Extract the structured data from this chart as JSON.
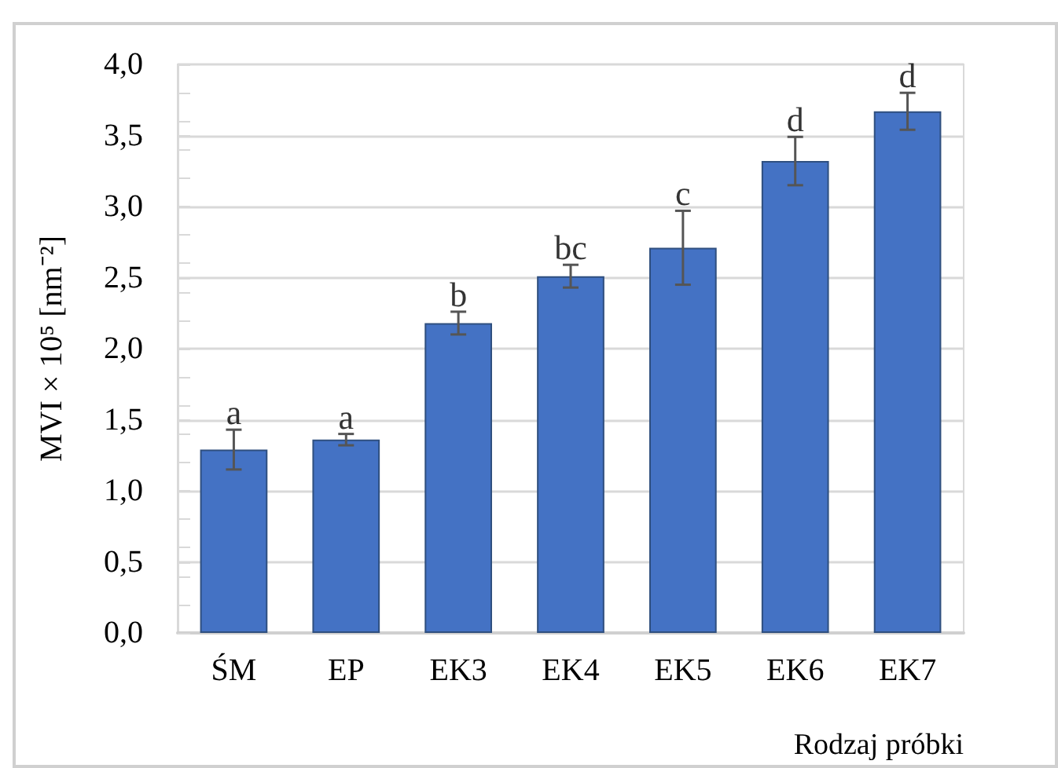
{
  "chart_data": {
    "type": "bar",
    "xlabel": "Rodzaj próbki",
    "ylabel": "MVI × 10⁵ [nm⁻²]",
    "categories": [
      "ŚM",
      "EP",
      "EK3",
      "EK4",
      "EK5",
      "EK6",
      "EK7"
    ],
    "values": [
      1.29,
      1.36,
      2.18,
      2.51,
      2.71,
      3.32,
      3.67
    ],
    "errors": [
      0.14,
      0.04,
      0.08,
      0.08,
      0.26,
      0.17,
      0.13
    ],
    "color": "#4472c4",
    "ylim": [
      0,
      4
    ],
    "yticks": [
      {
        "value": 0,
        "label": "0,0"
      },
      {
        "value": 0.5,
        "label": "0,5"
      },
      {
        "value": 1,
        "label": "1,0"
      },
      {
        "value": 1.5,
        "label": "1,5"
      },
      {
        "value": 2,
        "label": "2,0"
      },
      {
        "value": 2.5,
        "label": "2,5"
      },
      {
        "value": 3,
        "label": "3,0"
      },
      {
        "value": 3.5,
        "label": "3,5"
      },
      {
        "value": 4,
        "label": "4,0"
      }
    ],
    "grid": "y",
    "annotations": [
      {
        "text": "a",
        "x": "ŚM",
        "y": 1.43
      },
      {
        "text": "a",
        "x": "EP",
        "y": 1.4
      },
      {
        "text": "b",
        "x": "EK3",
        "y": 2.26
      },
      {
        "text": "bc",
        "x": "EK4",
        "y": 2.59
      },
      {
        "text": "c",
        "x": "EK5",
        "y": 2.97
      },
      {
        "text": "d",
        "x": "EK6",
        "y": 3.49
      },
      {
        "text": "d",
        "x": "EK7",
        "y": 3.8
      }
    ]
  }
}
